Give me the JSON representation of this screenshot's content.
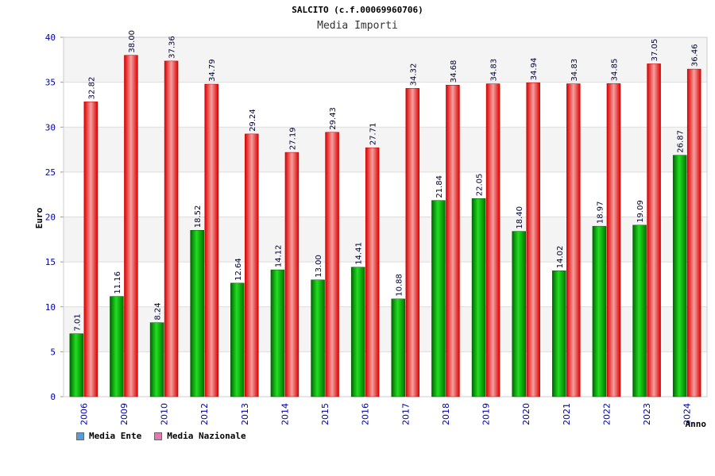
{
  "chart_data": {
    "type": "bar",
    "title": "SALCITO (c.f.00069960706)",
    "subtitle": "Media Importi",
    "ylabel": "Euro",
    "xlabel": "Anno",
    "ylim": [
      0,
      40
    ],
    "yticks": [
      0,
      5,
      10,
      15,
      20,
      25,
      30,
      35,
      40
    ],
    "categories": [
      "2006",
      "2009",
      "2010",
      "2012",
      "2013",
      "2014",
      "2015",
      "2016",
      "2017",
      "2018",
      "2019",
      "2020",
      "2021",
      "2022",
      "2023",
      "2024"
    ],
    "series": [
      {
        "name": "Media Ente",
        "legend_color": "#5b9bd5",
        "color": "#00a000",
        "values": [
          7.01,
          11.16,
          8.24,
          18.52,
          12.64,
          14.12,
          13.0,
          14.41,
          10.88,
          21.84,
          22.05,
          18.4,
          14.02,
          18.97,
          19.09,
          26.87
        ],
        "labels": [
          "7.01",
          "11.16",
          "8.24",
          "18.52",
          "12.64",
          "14.12",
          "13.00",
          "14.41",
          "10.88",
          "21.84",
          "22.05",
          "18.40",
          "14.02",
          "18.97",
          "19.09",
          "26.87"
        ]
      },
      {
        "name": "Media Nazionale",
        "legend_color": "#e07ab0",
        "color": "#ee1111",
        "values": [
          32.82,
          38.0,
          37.36,
          34.79,
          29.24,
          27.19,
          29.43,
          27.71,
          34.32,
          34.68,
          34.83,
          34.94,
          34.83,
          34.85,
          37.05,
          36.46
        ],
        "labels": [
          "32.82",
          "38.00",
          "37.36",
          "34.79",
          "29.24",
          "27.19",
          "29.43",
          "27.71",
          "34.32",
          "34.68",
          "34.83",
          "34.94",
          "34.83",
          "34.85",
          "37.05",
          "36.46"
        ]
      }
    ]
  }
}
